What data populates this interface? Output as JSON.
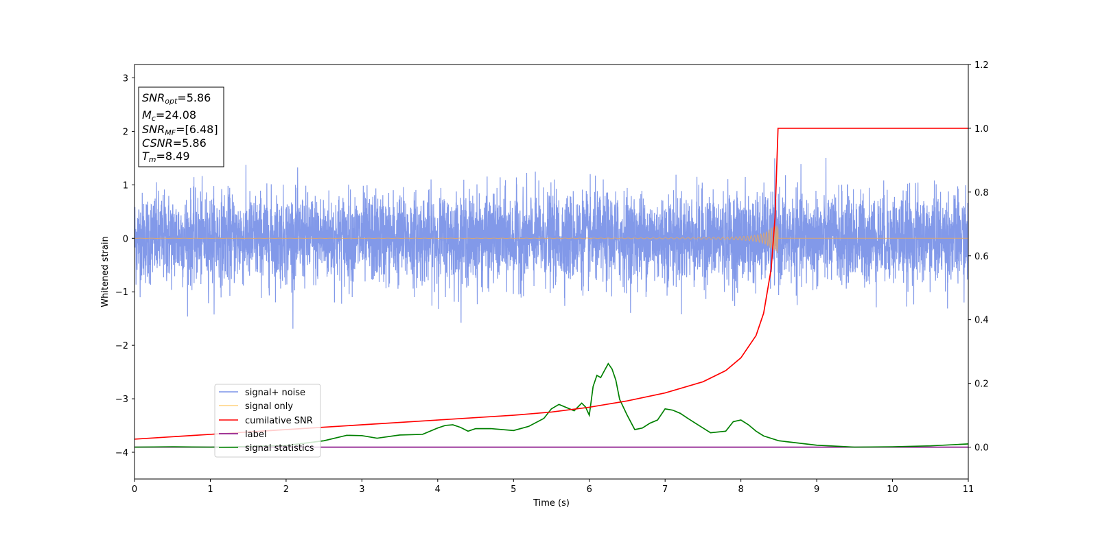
{
  "chart_data": {
    "type": "line",
    "xlabel": "Time (s)",
    "ylabel": "Whitened strain",
    "xlim": [
      0,
      11
    ],
    "ylim": [
      -4.5,
      3.25
    ],
    "y2lim": [
      -0.1,
      1.2
    ],
    "xticks": [
      "0",
      "1",
      "2",
      "3",
      "4",
      "5",
      "6",
      "7",
      "8",
      "9",
      "10",
      "11"
    ],
    "yticks": [
      "3",
      "2",
      "1",
      "0",
      "−1",
      "−2",
      "−3",
      "−4"
    ],
    "y2ticks": [
      "1.2",
      "1.0",
      "0.8",
      "0.6",
      "0.4",
      "0.2",
      "0.0"
    ],
    "grid": false,
    "legend": {
      "position": "lower-left",
      "entries": [
        {
          "label": "signal+ noise",
          "color": "#7b93e8"
        },
        {
          "label": "signal only",
          "color": "#ffd27f"
        },
        {
          "label": "cumilative SNR",
          "color": "#ff0000"
        },
        {
          "label": "label",
          "color": "#800080"
        },
        {
          "label": "signal statistics",
          "color": "#008000"
        }
      ]
    },
    "annotation": {
      "snr_opt": {
        "sym": "SNR",
        "sub": "opt",
        "value": "=5.86"
      },
      "mc": {
        "sym": "M",
        "sub": "c",
        "value": "=24.08"
      },
      "snr_mf": {
        "sym": "SNR",
        "sub": "MF",
        "value": "=[6.48]"
      },
      "csnr": {
        "sym": "CSNR",
        "value": "=5.86"
      },
      "tm": {
        "sym": "T",
        "sub": "m",
        "value": "=8.49"
      }
    },
    "series": [
      {
        "name": "signal+ noise",
        "axis": "left",
        "envelope_note": "dense whitened noise, typical amplitude about 1.0, peaks up to about 1.75",
        "merger_time": 8.49
      },
      {
        "name": "signal only",
        "axis": "left",
        "chirp_end": 8.49,
        "peak_amplitude": 0.3
      },
      {
        "name": "cumilative SNR",
        "axis": "right",
        "x": [
          0,
          1,
          2,
          3,
          4,
          5,
          5.5,
          6,
          6.5,
          7,
          7.5,
          7.8,
          8.0,
          8.2,
          8.3,
          8.4,
          8.45,
          8.49,
          8.5,
          11
        ],
        "y": [
          0.025,
          0.04,
          0.055,
          0.07,
          0.085,
          0.1,
          0.11,
          0.125,
          0.145,
          0.17,
          0.205,
          0.24,
          0.28,
          0.35,
          0.42,
          0.56,
          0.72,
          1.0,
          1.0,
          1.0
        ]
      },
      {
        "name": "label",
        "axis": "right",
        "x": [
          0,
          11
        ],
        "y": [
          0.0,
          0.0
        ]
      },
      {
        "name": "signal statistics",
        "axis": "right",
        "x": [
          0,
          0.5,
          1,
          1.5,
          2,
          2.5,
          2.8,
          3.0,
          3.2,
          3.5,
          3.8,
          4.0,
          4.1,
          4.2,
          4.3,
          4.4,
          4.5,
          4.7,
          5.0,
          5.2,
          5.4,
          5.5,
          5.6,
          5.8,
          5.9,
          5.95,
          6.0,
          6.05,
          6.1,
          6.15,
          6.2,
          6.25,
          6.3,
          6.35,
          6.4,
          6.5,
          6.6,
          6.7,
          6.8,
          6.9,
          7.0,
          7.1,
          7.2,
          7.3,
          7.5,
          7.6,
          7.8,
          7.9,
          8.0,
          8.1,
          8.2,
          8.3,
          8.5,
          9,
          9.5,
          10,
          10.5,
          11
        ],
        "y": [
          0.0,
          0.001,
          0.0,
          0.002,
          0.005,
          0.02,
          0.037,
          0.036,
          0.028,
          0.038,
          0.04,
          0.06,
          0.068,
          0.07,
          0.062,
          0.05,
          0.058,
          0.058,
          0.052,
          0.065,
          0.09,
          0.12,
          0.134,
          0.114,
          0.138,
          0.126,
          0.1,
          0.19,
          0.225,
          0.218,
          0.24,
          0.262,
          0.245,
          0.21,
          0.15,
          0.1,
          0.055,
          0.06,
          0.075,
          0.085,
          0.12,
          0.116,
          0.106,
          0.09,
          0.06,
          0.045,
          0.05,
          0.08,
          0.085,
          0.07,
          0.05,
          0.035,
          0.02,
          0.006,
          0.0,
          0.001,
          0.004,
          0.01
        ]
      }
    ]
  }
}
